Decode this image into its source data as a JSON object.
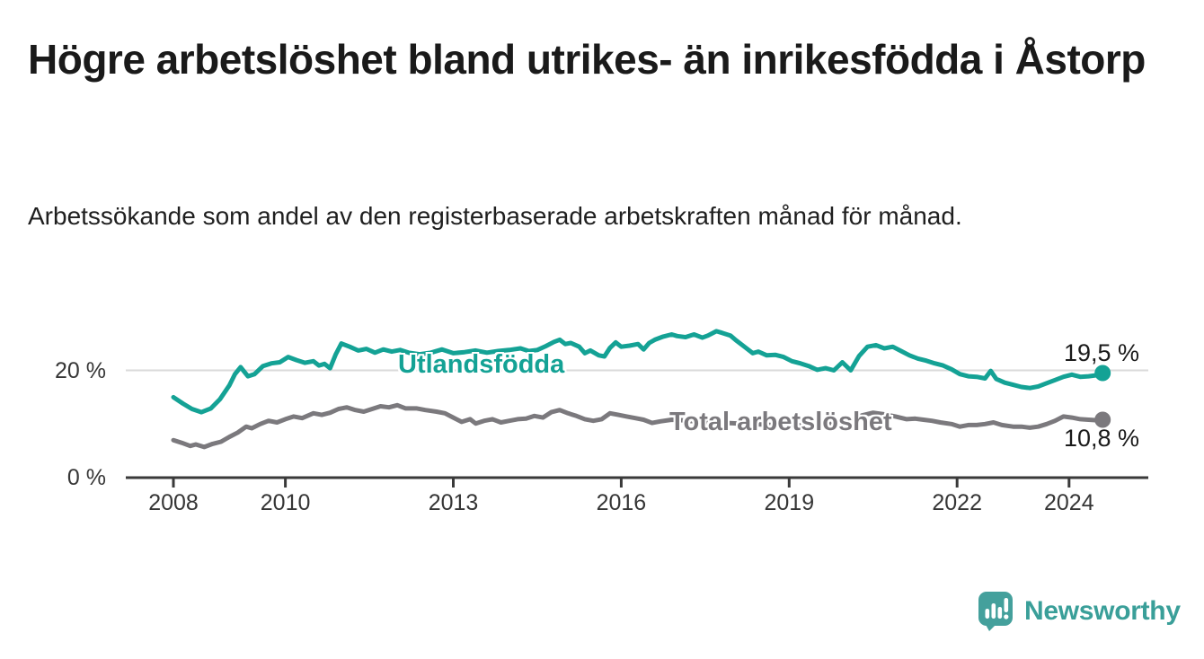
{
  "header": {
    "title": "Högre arbetslöshet bland utrikes- än inrikesfödda i Åstorp",
    "subtitle": "Arbetssökande som andel av den registerbaserade arbetskraften månad för månad."
  },
  "footer": {
    "brand": "Newsworthy",
    "logo_icon": "speech-bubble-bar-chart-icon",
    "brand_color": "#3a9f99"
  },
  "chart_data": {
    "type": "line",
    "title": "Högre arbetslöshet bland utrikes- än inrikesfödda i Åstorp",
    "subtitle": "Arbetssökande som andel av den registerbaserade arbetskraften månad för månad.",
    "xlabel": "",
    "ylabel": "",
    "x_unit": "year (monthly observations)",
    "y_unit": "percent of register-based labour force",
    "xlim": [
      2007.15,
      2025.4
    ],
    "ylim": [
      0,
      28.8
    ],
    "grid": "horizontal gridline at 20% only",
    "legend_position": "inline labels on lines",
    "x_ticks": [
      {
        "value": 2008,
        "label": "2008"
      },
      {
        "value": 2010,
        "label": "2010"
      },
      {
        "value": 2013,
        "label": "2013"
      },
      {
        "value": 2016,
        "label": "2016"
      },
      {
        "value": 2019,
        "label": "2019"
      },
      {
        "value": 2022,
        "label": "2022"
      },
      {
        "value": 2024,
        "label": "2024"
      }
    ],
    "y_ticks": [
      {
        "value": 0,
        "label": "0 %"
      },
      {
        "value": 20,
        "label": "20 %"
      }
    ],
    "series": [
      {
        "name": "Utlandsfödda",
        "color": "#14a295",
        "end_value": 19.5,
        "end_label": "19,5 %",
        "points": [
          [
            2008.0,
            15.0
          ],
          [
            2008.17,
            13.8
          ],
          [
            2008.33,
            12.8
          ],
          [
            2008.5,
            12.2
          ],
          [
            2008.67,
            12.9
          ],
          [
            2008.83,
            14.6
          ],
          [
            2009.0,
            17.2
          ],
          [
            2009.1,
            19.3
          ],
          [
            2009.2,
            20.6
          ],
          [
            2009.33,
            18.9
          ],
          [
            2009.45,
            19.3
          ],
          [
            2009.6,
            20.8
          ],
          [
            2009.75,
            21.3
          ],
          [
            2009.9,
            21.5
          ],
          [
            2010.05,
            22.5
          ],
          [
            2010.2,
            21.9
          ],
          [
            2010.35,
            21.4
          ],
          [
            2010.5,
            21.7
          ],
          [
            2010.6,
            20.9
          ],
          [
            2010.7,
            21.2
          ],
          [
            2010.8,
            20.4
          ],
          [
            2010.9,
            23.0
          ],
          [
            2011.0,
            25.0
          ],
          [
            2011.15,
            24.4
          ],
          [
            2011.3,
            23.7
          ],
          [
            2011.45,
            24.0
          ],
          [
            2011.6,
            23.3
          ],
          [
            2011.75,
            23.9
          ],
          [
            2011.9,
            23.5
          ],
          [
            2012.05,
            23.8
          ],
          [
            2012.2,
            23.3
          ],
          [
            2012.4,
            23.0
          ],
          [
            2012.6,
            23.3
          ],
          [
            2012.8,
            23.9
          ],
          [
            2013.0,
            23.2
          ],
          [
            2013.2,
            23.4
          ],
          [
            2013.4,
            23.7
          ],
          [
            2013.6,
            23.3
          ],
          [
            2013.8,
            23.6
          ],
          [
            2014.0,
            23.8
          ],
          [
            2014.2,
            24.1
          ],
          [
            2014.35,
            23.6
          ],
          [
            2014.5,
            23.8
          ],
          [
            2014.65,
            24.5
          ],
          [
            2014.8,
            25.3
          ],
          [
            2014.9,
            25.7
          ],
          [
            2015.0,
            24.9
          ],
          [
            2015.1,
            25.1
          ],
          [
            2015.25,
            24.4
          ],
          [
            2015.35,
            23.2
          ],
          [
            2015.45,
            23.7
          ],
          [
            2015.6,
            22.8
          ],
          [
            2015.7,
            22.6
          ],
          [
            2015.8,
            24.2
          ],
          [
            2015.9,
            25.2
          ],
          [
            2016.0,
            24.4
          ],
          [
            2016.15,
            24.6
          ],
          [
            2016.3,
            24.9
          ],
          [
            2016.4,
            23.9
          ],
          [
            2016.5,
            25.1
          ],
          [
            2016.6,
            25.7
          ],
          [
            2016.75,
            26.3
          ],
          [
            2016.9,
            26.7
          ],
          [
            2017.0,
            26.4
          ],
          [
            2017.15,
            26.2
          ],
          [
            2017.3,
            26.7
          ],
          [
            2017.45,
            26.1
          ],
          [
            2017.55,
            26.5
          ],
          [
            2017.7,
            27.3
          ],
          [
            2017.8,
            27.0
          ],
          [
            2017.95,
            26.5
          ],
          [
            2018.05,
            25.6
          ],
          [
            2018.2,
            24.4
          ],
          [
            2018.35,
            23.2
          ],
          [
            2018.45,
            23.5
          ],
          [
            2018.6,
            22.8
          ],
          [
            2018.75,
            22.9
          ],
          [
            2018.9,
            22.5
          ],
          [
            2019.05,
            21.7
          ],
          [
            2019.2,
            21.3
          ],
          [
            2019.35,
            20.8
          ],
          [
            2019.5,
            20.1
          ],
          [
            2019.65,
            20.4
          ],
          [
            2019.8,
            20.0
          ],
          [
            2019.95,
            21.5
          ],
          [
            2020.1,
            20.0
          ],
          [
            2020.25,
            22.7
          ],
          [
            2020.4,
            24.4
          ],
          [
            2020.55,
            24.7
          ],
          [
            2020.7,
            24.1
          ],
          [
            2020.85,
            24.4
          ],
          [
            2021.0,
            23.6
          ],
          [
            2021.15,
            22.8
          ],
          [
            2021.3,
            22.2
          ],
          [
            2021.45,
            21.8
          ],
          [
            2021.6,
            21.3
          ],
          [
            2021.75,
            20.9
          ],
          [
            2021.9,
            20.2
          ],
          [
            2022.05,
            19.3
          ],
          [
            2022.2,
            18.9
          ],
          [
            2022.35,
            18.8
          ],
          [
            2022.5,
            18.5
          ],
          [
            2022.6,
            19.9
          ],
          [
            2022.7,
            18.4
          ],
          [
            2022.85,
            17.7
          ],
          [
            2023.0,
            17.3
          ],
          [
            2023.15,
            16.9
          ],
          [
            2023.3,
            16.7
          ],
          [
            2023.45,
            17.0
          ],
          [
            2023.6,
            17.6
          ],
          [
            2023.75,
            18.2
          ],
          [
            2023.9,
            18.8
          ],
          [
            2024.05,
            19.2
          ],
          [
            2024.2,
            18.8
          ],
          [
            2024.35,
            18.9
          ],
          [
            2024.5,
            19.1
          ],
          [
            2024.6,
            19.5
          ]
        ]
      },
      {
        "name": "Total arbetslöshet",
        "color": "#7b797d",
        "end_value": 10.8,
        "end_label": "10,8 %",
        "points": [
          [
            2008.0,
            7.0
          ],
          [
            2008.15,
            6.5
          ],
          [
            2008.3,
            5.9
          ],
          [
            2008.4,
            6.2
          ],
          [
            2008.55,
            5.7
          ],
          [
            2008.7,
            6.3
          ],
          [
            2008.85,
            6.7
          ],
          [
            2009.0,
            7.6
          ],
          [
            2009.15,
            8.4
          ],
          [
            2009.3,
            9.5
          ],
          [
            2009.4,
            9.2
          ],
          [
            2009.55,
            10.0
          ],
          [
            2009.7,
            10.6
          ],
          [
            2009.85,
            10.3
          ],
          [
            2010.0,
            10.9
          ],
          [
            2010.15,
            11.4
          ],
          [
            2010.3,
            11.1
          ],
          [
            2010.5,
            12.0
          ],
          [
            2010.65,
            11.7
          ],
          [
            2010.8,
            12.1
          ],
          [
            2010.95,
            12.8
          ],
          [
            2011.1,
            13.1
          ],
          [
            2011.25,
            12.6
          ],
          [
            2011.4,
            12.3
          ],
          [
            2011.55,
            12.8
          ],
          [
            2011.7,
            13.3
          ],
          [
            2011.85,
            13.1
          ],
          [
            2012.0,
            13.5
          ],
          [
            2012.15,
            12.9
          ],
          [
            2012.35,
            12.9
          ],
          [
            2012.5,
            12.6
          ],
          [
            2012.7,
            12.3
          ],
          [
            2012.85,
            12.0
          ],
          [
            2013.0,
            11.2
          ],
          [
            2013.15,
            10.4
          ],
          [
            2013.3,
            10.9
          ],
          [
            2013.4,
            10.1
          ],
          [
            2013.55,
            10.6
          ],
          [
            2013.7,
            10.9
          ],
          [
            2013.85,
            10.3
          ],
          [
            2014.0,
            10.6
          ],
          [
            2014.15,
            10.9
          ],
          [
            2014.3,
            11.0
          ],
          [
            2014.45,
            11.5
          ],
          [
            2014.6,
            11.2
          ],
          [
            2014.75,
            12.2
          ],
          [
            2014.9,
            12.6
          ],
          [
            2015.05,
            12.0
          ],
          [
            2015.2,
            11.5
          ],
          [
            2015.35,
            10.9
          ],
          [
            2015.5,
            10.6
          ],
          [
            2015.65,
            10.9
          ],
          [
            2015.8,
            12.0
          ],
          [
            2015.95,
            11.7
          ],
          [
            2016.1,
            11.4
          ],
          [
            2016.25,
            11.1
          ],
          [
            2016.4,
            10.8
          ],
          [
            2016.55,
            10.2
          ],
          [
            2016.7,
            10.5
          ],
          [
            2016.9,
            10.8
          ],
          [
            2017.1,
            10.7
          ],
          [
            2017.3,
            10.5
          ],
          [
            2017.5,
            10.4
          ],
          [
            2017.7,
            10.3
          ],
          [
            2017.9,
            10.2
          ],
          [
            2018.1,
            10.1
          ],
          [
            2018.3,
            10.0
          ],
          [
            2018.5,
            9.9
          ],
          [
            2018.7,
            9.8
          ],
          [
            2018.9,
            9.8
          ],
          [
            2019.1,
            9.7
          ],
          [
            2019.3,
            9.8
          ],
          [
            2019.5,
            9.9
          ],
          [
            2019.7,
            10.0
          ],
          [
            2019.9,
            10.1
          ],
          [
            2020.1,
            10.4
          ],
          [
            2020.3,
            11.6
          ],
          [
            2020.5,
            12.1
          ],
          [
            2020.7,
            11.8
          ],
          [
            2020.9,
            11.4
          ],
          [
            2021.1,
            10.9
          ],
          [
            2021.25,
            11.0
          ],
          [
            2021.4,
            10.8
          ],
          [
            2021.55,
            10.6
          ],
          [
            2021.7,
            10.3
          ],
          [
            2021.9,
            10.0
          ],
          [
            2022.05,
            9.5
          ],
          [
            2022.2,
            9.8
          ],
          [
            2022.35,
            9.8
          ],
          [
            2022.5,
            10.0
          ],
          [
            2022.65,
            10.3
          ],
          [
            2022.8,
            9.8
          ],
          [
            2023.0,
            9.5
          ],
          [
            2023.15,
            9.5
          ],
          [
            2023.3,
            9.3
          ],
          [
            2023.45,
            9.5
          ],
          [
            2023.6,
            10.0
          ],
          [
            2023.75,
            10.6
          ],
          [
            2023.9,
            11.4
          ],
          [
            2024.05,
            11.2
          ],
          [
            2024.2,
            10.9
          ],
          [
            2024.35,
            10.8
          ],
          [
            2024.5,
            10.7
          ],
          [
            2024.6,
            10.8
          ]
        ]
      }
    ]
  }
}
